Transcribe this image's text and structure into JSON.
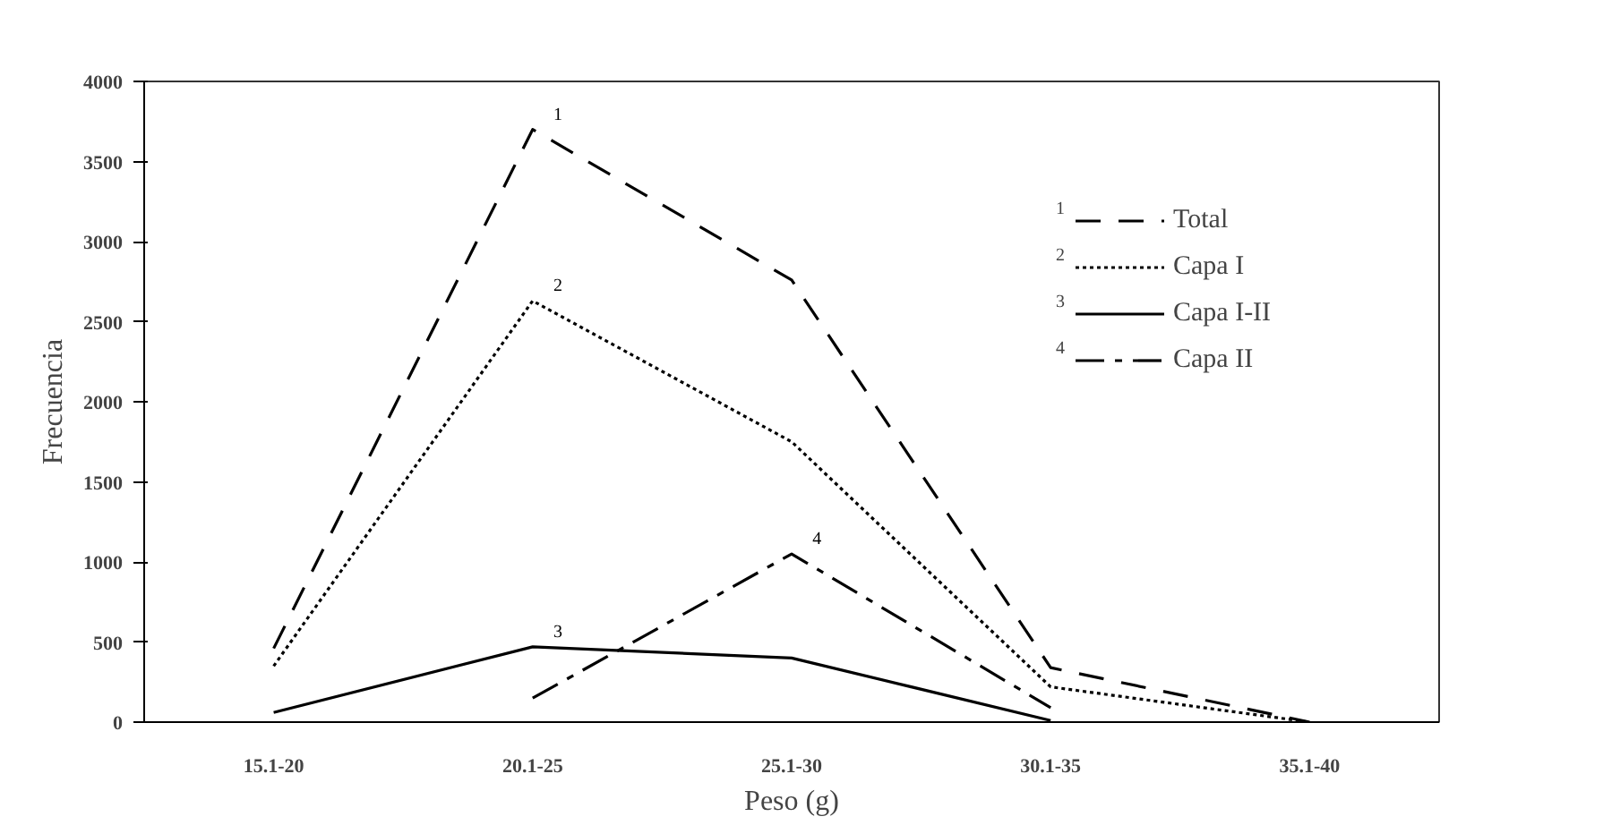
{
  "chart_data": {
    "type": "line",
    "xlabel": "Peso (g)",
    "ylabel": "Frecuencia",
    "categories": [
      "15.1-20",
      "20.1-25",
      "25.1-30",
      "30.1-35",
      "35.1-40"
    ],
    "series": [
      {
        "name": "Total",
        "color": "#000000",
        "line_style": "dashed",
        "values": [
          460,
          3700,
          2760,
          340,
          0
        ]
      },
      {
        "name": "Capa I",
        "color": "#000000",
        "line_style": "dotted",
        "values": [
          350,
          2630,
          1750,
          220,
          0
        ]
      },
      {
        "name": "Capa I-II",
        "color": "#000000",
        "line_style": "solid",
        "values": [
          60,
          470,
          400,
          10,
          null
        ]
      },
      {
        "name": "Capa II",
        "color": "#000000",
        "line_style": "dashdot",
        "values": [
          null,
          150,
          1050,
          90,
          null
        ]
      }
    ],
    "annotations": [
      {
        "text": "1",
        "x": "20.1-25",
        "y": 3700
      },
      {
        "text": "2",
        "x": "20.1-25",
        "y": 2630
      },
      {
        "text": "3",
        "x": "20.1-25",
        "y": 470
      },
      {
        "text": "4",
        "x": "25.1-30",
        "y": 1050
      },
      "1",
      "2",
      "3",
      "4"
    ],
    "ylim": [
      0,
      4000
    ],
    "yticks": [
      0,
      500,
      1000,
      1500,
      2000,
      2500,
      3000,
      3500,
      4000
    ],
    "grid": false,
    "legend": "top right",
    "marker": "none"
  }
}
